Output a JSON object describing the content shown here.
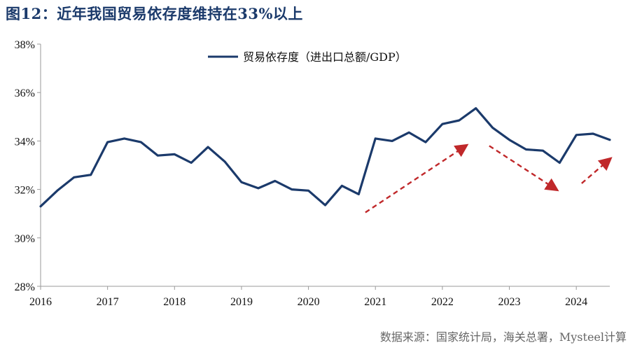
{
  "title": "图12：近年我国贸易依存度维持在33%以上",
  "source": "数据来源：国家统计局，海关总署，Mysteel计算",
  "colors": {
    "series": "#1b3a6b",
    "arrow": "#c0282a",
    "title": "#1b3a6b",
    "axis": "#9a9a9a"
  },
  "chart_data": {
    "type": "line",
    "xlim": [
      2016,
      2024.5
    ],
    "ylim": [
      28,
      38
    ],
    "yticks": [
      28,
      30,
      32,
      34,
      36,
      38
    ],
    "ytick_labels": [
      "28%",
      "30%",
      "32%",
      "34%",
      "36%",
      "38%"
    ],
    "xticks": [
      2016,
      2017,
      2018,
      2019,
      2020,
      2021,
      2022,
      2023,
      2024
    ],
    "xtick_labels": [
      "2016",
      "2017",
      "2018",
      "2019",
      "2020",
      "2021",
      "2022",
      "2023",
      "2024"
    ],
    "legend_position": "top-center",
    "grid": false,
    "series": [
      {
        "name": "贸易依存度（进出口总额/GDP）",
        "color": "#1b3a6b",
        "x": [
          2016.0,
          2016.25,
          2016.5,
          2016.75,
          2017.0,
          2017.25,
          2017.5,
          2017.75,
          2018.0,
          2018.25,
          2018.5,
          2018.75,
          2019.0,
          2019.25,
          2019.5,
          2019.75,
          2020.0,
          2020.25,
          2020.5,
          2020.75,
          2021.0,
          2021.25,
          2021.5,
          2021.75,
          2022.0,
          2022.25,
          2022.5,
          2022.75,
          2023.0,
          2023.25,
          2023.5,
          2023.75,
          2024.0,
          2024.25,
          2024.5
        ],
        "values": [
          31.3,
          31.95,
          32.5,
          32.6,
          33.95,
          34.1,
          33.95,
          33.4,
          33.45,
          33.1,
          33.75,
          33.15,
          32.3,
          32.05,
          32.35,
          32.0,
          31.95,
          31.35,
          32.15,
          31.8,
          34.1,
          34.0,
          34.35,
          33.95,
          34.7,
          34.85,
          35.35,
          34.55,
          34.05,
          33.65,
          33.6,
          33.1,
          34.25,
          34.3,
          34.05
        ]
      }
    ],
    "trend_arrows": [
      {
        "from": [
          2020.85,
          31.05
        ],
        "to": [
          2022.35,
          33.8
        ],
        "direction": "up"
      },
      {
        "from": [
          2022.7,
          33.8
        ],
        "to": [
          2023.7,
          32.0
        ],
        "direction": "down"
      },
      {
        "from": [
          2024.08,
          32.25
        ],
        "to": [
          2024.5,
          33.25
        ],
        "direction": "up"
      }
    ]
  }
}
